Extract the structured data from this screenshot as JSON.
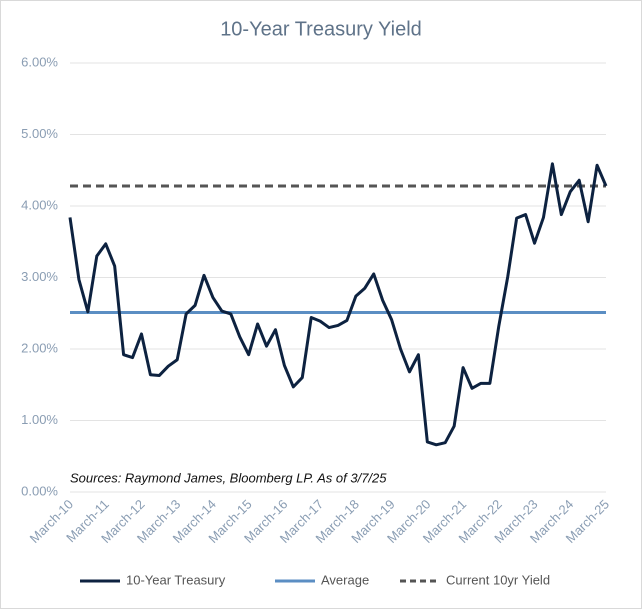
{
  "chart_data": {
    "type": "line",
    "title": "10-Year Treasury Yield",
    "annotation": "Sources: Raymond James, Bloomberg LP.  As of 3/7/25",
    "categories": [
      "March-10",
      null,
      null,
      null,
      "March-11",
      null,
      null,
      null,
      "March-12",
      null,
      null,
      null,
      "March-13",
      null,
      null,
      null,
      "March-14",
      null,
      null,
      null,
      "March-15",
      null,
      null,
      null,
      "March-16",
      null,
      null,
      null,
      "March-17",
      null,
      null,
      null,
      "March-18",
      null,
      null,
      null,
      "March-19",
      null,
      null,
      null,
      "March-20",
      null,
      null,
      null,
      "March-21",
      null,
      null,
      null,
      "March-22",
      null,
      null,
      null,
      "March-23",
      null,
      null,
      null,
      "March-24",
      null,
      null,
      null,
      "March-25"
    ],
    "series": [
      {
        "name": "10-Year Treasury",
        "color": "#0d2240",
        "values": [
          3.84,
          2.97,
          2.52,
          3.3,
          3.47,
          3.16,
          1.92,
          1.88,
          2.21,
          1.64,
          1.63,
          1.76,
          1.85,
          2.49,
          2.61,
          3.03,
          2.72,
          2.53,
          2.49,
          2.17,
          1.92,
          2.35,
          2.04,
          2.27,
          1.77,
          1.47,
          1.6,
          2.44,
          2.39,
          2.3,
          2.33,
          2.4,
          2.74,
          2.85,
          3.05,
          2.68,
          2.41,
          2.0,
          1.68,
          1.92,
          0.7,
          0.66,
          0.69,
          0.92,
          1.74,
          1.45,
          1.52,
          1.52,
          2.32,
          3.01,
          3.83,
          3.88,
          3.48,
          3.84,
          4.59,
          3.88,
          4.2,
          4.36,
          3.78,
          4.57,
          4.28
        ]
      }
    ],
    "reference_lines": [
      {
        "name": "Average",
        "value": 2.51,
        "color": "#5b8ec3",
        "style": "solid"
      },
      {
        "name": "Current 10yr Yield",
        "value": 4.28,
        "color": "#555555",
        "style": "dashed"
      }
    ],
    "ylim": [
      0,
      6
    ],
    "yticks": [
      {
        "value": 0,
        "label": "0.00%"
      },
      {
        "value": 1,
        "label": "1.00%"
      },
      {
        "value": 2,
        "label": "2.00%"
      },
      {
        "value": 3,
        "label": "3.00%"
      },
      {
        "value": 4,
        "label": "4.00%"
      },
      {
        "value": 5,
        "label": "5.00%"
      },
      {
        "value": 6,
        "label": "6.00%"
      }
    ],
    "grid": true,
    "legend": "bottom"
  }
}
